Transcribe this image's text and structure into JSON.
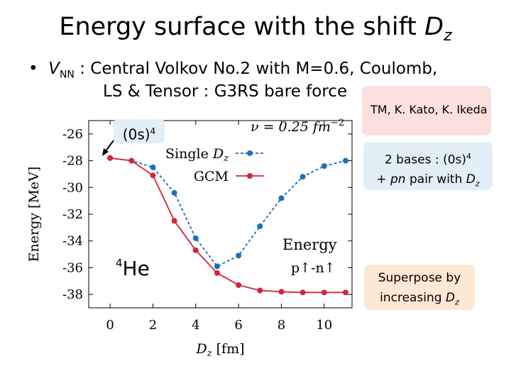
{
  "slide": {
    "title_main": "Energy surface with the shift ",
    "title_var": "D",
    "title_sub": "z",
    "bullet_var": "V",
    "bullet_sub": "NN",
    "bullet_line1": " :  Central Volkov No.2 with M=0.6, Coulomb,",
    "bullet_line2": "LS & Tensor :  G3RS bare force",
    "credit": "TM, K. Kato, K. Ikeda",
    "bases_line1_a": "2 bases : (0s)",
    "bases_line1_sup": "4",
    "bases_line2_a": "+ ",
    "bases_line2_pn": "pn",
    "bases_line2_b": " pair with ",
    "bases_line2_var": "D",
    "bases_line2_sub": "z",
    "superpose_line1": "Superpose by",
    "superpose_line2_a": "increasing ",
    "superpose_line2_var": "D",
    "superpose_line2_sub": "z",
    "os4_label": "(0s)",
    "os4_sup": "4",
    "he_sup": "4",
    "he_label": "He",
    "nu_label": "ν = 0.25 fm",
    "nu_exp": "−2",
    "energy_label1": "Energy",
    "energy_label2": "p↑-n↑"
  },
  "chart_data": {
    "type": "line",
    "xlabel": "D",
    "xlabel_sub": "z",
    "xlabel_unit": " [fm]",
    "ylabel": "Energy [MeV]",
    "xlim": [
      -1,
      11.3
    ],
    "ylim": [
      -39,
      -25
    ],
    "xticks": [
      0,
      2,
      4,
      6,
      8,
      10
    ],
    "yticks": [
      -26,
      -28,
      -30,
      -32,
      -34,
      -36,
      -38
    ],
    "series": [
      {
        "name": "Single ",
        "name_var": "D",
        "name_sub": "z",
        "style": "dashed",
        "color": "#1f6fb5",
        "x": [
          0,
          1,
          2,
          3,
          4,
          5,
          6,
          7,
          8,
          9,
          10,
          11
        ],
        "y": [
          -27.8,
          -28.0,
          -28.5,
          -30.4,
          -33.8,
          -35.9,
          -35.1,
          -32.9,
          -30.8,
          -29.2,
          -28.4,
          -28.0
        ]
      },
      {
        "name": "GCM",
        "style": "solid",
        "color": "#d0253b",
        "x": [
          0,
          1,
          2,
          3,
          4,
          5,
          6,
          7,
          8,
          9,
          10,
          11
        ],
        "y": [
          -27.8,
          -28.0,
          -29.1,
          -32.5,
          -34.7,
          -36.4,
          -37.3,
          -37.7,
          -37.8,
          -37.85,
          -37.85,
          -37.85
        ]
      }
    ]
  }
}
